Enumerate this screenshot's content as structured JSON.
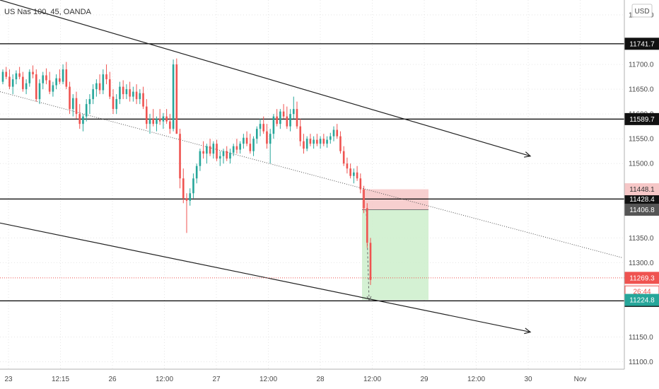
{
  "header": {
    "title": "US Nas 100, 45, OANDA",
    "currency": "USD"
  },
  "colors": {
    "up": "#26a69a",
    "down": "#ef5350",
    "grid": "#e6e6e6",
    "risk_zone": "#f6c7c7",
    "reward_zone": "#cdeecb",
    "price_tag_red": "#ef5350",
    "price_tag_green": "#26a69a",
    "price_tag_gray": "#555555"
  },
  "chart_data": {
    "type": "candlestick",
    "symbol": "US Nas 100",
    "timeframe": "45",
    "source": "OANDA",
    "ylim": [
      11085,
      11830
    ],
    "y_ticks": [
      11800,
      11700,
      11650,
      11600,
      11550,
      11500,
      11350,
      11300,
      11150,
      11100
    ],
    "x_ticks": [
      "23",
      "12:15",
      "26",
      "12:00",
      "27",
      "12:00",
      "28",
      "12:00",
      "29",
      "12:00",
      "30",
      "Nov"
    ],
    "horizontal_levels": [
      {
        "price": "11741.7",
        "value": 11741.7,
        "tag": "black"
      },
      {
        "price": "11589.7",
        "value": 11589.7,
        "tag": "black"
      },
      {
        "price": "11428.4",
        "value": 11428.4,
        "tag": "black"
      },
      {
        "price": "11222.9",
        "value": 11222.9,
        "tag": "black"
      }
    ],
    "price_tags": [
      {
        "price": "11448.1",
        "value": 11448.1,
        "style": "pink"
      },
      {
        "price": "11406.8",
        "value": 11406.8,
        "style": "gray"
      },
      {
        "price": "11269.3",
        "value": 11269.3,
        "style": "red"
      },
      {
        "price": "26:44",
        "value": 11246,
        "style": "countdown"
      },
      {
        "price": "11224.8",
        "value": 11224.8,
        "style": "green"
      }
    ],
    "current_price": 11269.3,
    "position": {
      "entry": 11406.8,
      "stop": 11448.1,
      "target": 11224.8
    },
    "trendlines": [
      {
        "from": [
          0,
          11830
        ],
        "to": [
          750,
          11515
        ],
        "style": "solid",
        "arrow": true
      },
      {
        "from": [
          0,
          11645
        ],
        "to": [
          880,
          11310
        ],
        "style": "dotted",
        "arrow": false
      },
      {
        "from": [
          0,
          11380
        ],
        "to": [
          750,
          11160
        ],
        "style": "solid",
        "arrow": true
      }
    ],
    "candles": [
      [
        11665,
        11690,
        11660,
        11685
      ],
      [
        11685,
        11695,
        11670,
        11675
      ],
      [
        11675,
        11690,
        11650,
        11655
      ],
      [
        11655,
        11680,
        11640,
        11670
      ],
      [
        11670,
        11688,
        11660,
        11682
      ],
      [
        11682,
        11695,
        11670,
        11675
      ],
      [
        11675,
        11685,
        11645,
        11650
      ],
      [
        11650,
        11670,
        11640,
        11662
      ],
      [
        11662,
        11690,
        11655,
        11685
      ],
      [
        11685,
        11698,
        11672,
        11680
      ],
      [
        11680,
        11690,
        11625,
        11630
      ],
      [
        11630,
        11670,
        11620,
        11662
      ],
      [
        11662,
        11685,
        11650,
        11678
      ],
      [
        11678,
        11692,
        11660,
        11668
      ],
      [
        11668,
        11685,
        11640,
        11645
      ],
      [
        11645,
        11665,
        11635,
        11658
      ],
      [
        11658,
        11680,
        11650,
        11672
      ],
      [
        11672,
        11690,
        11660,
        11665
      ],
      [
        11665,
        11700,
        11660,
        11690
      ],
      [
        11690,
        11705,
        11650,
        11655
      ],
      [
        11655,
        11665,
        11600,
        11610
      ],
      [
        11610,
        11640,
        11595,
        11632
      ],
      [
        11632,
        11645,
        11590,
        11600
      ],
      [
        11600,
        11620,
        11570,
        11580
      ],
      [
        11580,
        11600,
        11565,
        11595
      ],
      [
        11595,
        11630,
        11585,
        11620
      ],
      [
        11620,
        11640,
        11600,
        11630
      ],
      [
        11630,
        11660,
        11620,
        11650
      ],
      [
        11650,
        11670,
        11635,
        11662
      ],
      [
        11662,
        11680,
        11640,
        11648
      ],
      [
        11648,
        11690,
        11640,
        11680
      ],
      [
        11680,
        11700,
        11660,
        11670
      ],
      [
        11670,
        11685,
        11630,
        11635
      ],
      [
        11635,
        11650,
        11600,
        11610
      ],
      [
        11610,
        11640,
        11600,
        11630
      ],
      [
        11630,
        11665,
        11620,
        11655
      ],
      [
        11655,
        11668,
        11630,
        11640
      ],
      [
        11640,
        11660,
        11630,
        11650
      ],
      [
        11650,
        11665,
        11625,
        11635
      ],
      [
        11635,
        11655,
        11625,
        11645
      ],
      [
        11645,
        11660,
        11620,
        11630
      ],
      [
        11630,
        11650,
        11620,
        11642
      ],
      [
        11642,
        11655,
        11610,
        11615
      ],
      [
        11615,
        11630,
        11570,
        11580
      ],
      [
        11580,
        11600,
        11560,
        11590
      ],
      [
        11590,
        11610,
        11575,
        11580
      ],
      [
        11580,
        11595,
        11565,
        11590
      ],
      [
        11590,
        11610,
        11578,
        11585
      ],
      [
        11585,
        11602,
        11570,
        11595
      ],
      [
        11595,
        11610,
        11580,
        11585
      ],
      [
        11585,
        11600,
        11560,
        11570
      ],
      [
        11570,
        11710,
        11565,
        11700
      ],
      [
        11700,
        11712,
        11560,
        11560
      ],
      [
        11560,
        11570,
        11450,
        11470
      ],
      [
        11470,
        11490,
        11420,
        11430
      ],
      [
        11430,
        11440,
        11360,
        11425
      ],
      [
        11425,
        11450,
        11415,
        11440
      ],
      [
        11440,
        11480,
        11430,
        11470
      ],
      [
        11470,
        11500,
        11460,
        11495
      ],
      [
        11495,
        11530,
        11485,
        11525
      ],
      [
        11525,
        11545,
        11510,
        11520
      ],
      [
        11520,
        11540,
        11500,
        11535
      ],
      [
        11535,
        11550,
        11515,
        11520
      ],
      [
        11520,
        11545,
        11510,
        11540
      ],
      [
        11540,
        11548,
        11505,
        11510
      ],
      [
        11510,
        11525,
        11495,
        11515
      ],
      [
        11515,
        11530,
        11500,
        11525
      ],
      [
        11525,
        11535,
        11505,
        11510
      ],
      [
        11510,
        11530,
        11500,
        11522
      ],
      [
        11522,
        11540,
        11515,
        11535
      ],
      [
        11535,
        11550,
        11520,
        11528
      ],
      [
        11528,
        11545,
        11520,
        11540
      ],
      [
        11540,
        11560,
        11530,
        11552
      ],
      [
        11552,
        11565,
        11535,
        11540
      ],
      [
        11540,
        11560,
        11520,
        11525
      ],
      [
        11525,
        11555,
        11515,
        11550
      ],
      [
        11550,
        11575,
        11540,
        11570
      ],
      [
        11570,
        11590,
        11555,
        11580
      ],
      [
        11580,
        11595,
        11560,
        11565
      ],
      [
        11565,
        11580,
        11530,
        11540
      ],
      [
        11540,
        11570,
        11500,
        11560
      ],
      [
        11560,
        11600,
        11550,
        11595
      ],
      [
        11595,
        11610,
        11575,
        11580
      ],
      [
        11580,
        11610,
        11570,
        11605
      ],
      [
        11605,
        11620,
        11590,
        11595
      ],
      [
        11595,
        11615,
        11570,
        11575
      ],
      [
        11575,
        11610,
        11565,
        11600
      ],
      [
        11600,
        11635,
        11590,
        11610
      ],
      [
        11610,
        11625,
        11570,
        11575
      ],
      [
        11575,
        11590,
        11535,
        11545
      ],
      [
        11545,
        11560,
        11520,
        11530
      ],
      [
        11530,
        11555,
        11525,
        11550
      ],
      [
        11550,
        11560,
        11535,
        11540
      ],
      [
        11540,
        11555,
        11530,
        11548
      ],
      [
        11548,
        11560,
        11535,
        11540
      ],
      [
        11540,
        11555,
        11530,
        11550
      ],
      [
        11550,
        11560,
        11535,
        11540
      ],
      [
        11540,
        11555,
        11532,
        11548
      ],
      [
        11548,
        11562,
        11540,
        11555
      ],
      [
        11555,
        11575,
        11545,
        11568
      ],
      [
        11568,
        11580,
        11550,
        11555
      ],
      [
        11555,
        11565,
        11520,
        11525
      ],
      [
        11525,
        11535,
        11495,
        11500
      ],
      [
        11500,
        11512,
        11480,
        11490
      ],
      [
        11490,
        11500,
        11470,
        11475
      ],
      [
        11475,
        11490,
        11460,
        11482
      ],
      [
        11482,
        11495,
        11465,
        11470
      ],
      [
        11470,
        11480,
        11440,
        11448
      ],
      [
        11448,
        11455,
        11400,
        11410
      ],
      [
        11410,
        11420,
        11330,
        11340
      ],
      [
        11340,
        11350,
        11255,
        11265
      ]
    ]
  }
}
